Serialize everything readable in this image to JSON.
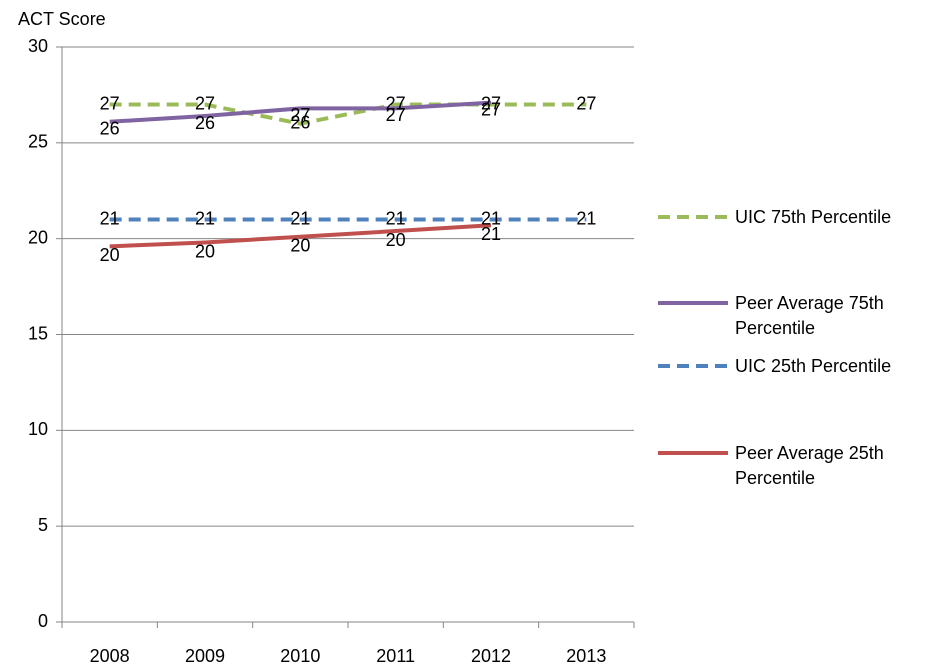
{
  "chart_data": {
    "type": "line",
    "y_label": "ACT Score",
    "categories": [
      "2008",
      "2009",
      "2010",
      "2011",
      "2012",
      "2013"
    ],
    "series": [
      {
        "name": "UIC 75th Percentile",
        "color": "#9bbb59",
        "dashed": true,
        "values": [
          27,
          27,
          26,
          27,
          27,
          27
        ]
      },
      {
        "name": "Peer Average 75th Percentile",
        "color": "#8064a2",
        "dashed": false,
        "values": [
          26.1,
          26.4,
          26.8,
          26.8,
          27.1,
          null
        ],
        "value_labels": [
          "26",
          "26",
          "27",
          "27",
          "27",
          null
        ]
      },
      {
        "name": "UIC 25th Percentile",
        "color": "#4f81bd",
        "dashed": true,
        "values": [
          21,
          21,
          21,
          21,
          21,
          21
        ]
      },
      {
        "name": "Peer Average 25th Percentile",
        "color": "#c0504d",
        "dashed": false,
        "values": [
          19.6,
          19.8,
          20.1,
          20.4,
          20.7,
          null
        ],
        "value_labels": [
          "20",
          "20",
          "20",
          "20",
          "21",
          null
        ]
      }
    ],
    "ylim": [
      0,
      30
    ],
    "yticks": [
      0,
      5,
      10,
      15,
      20,
      25,
      30
    ],
    "grid": true,
    "legend": "right"
  }
}
